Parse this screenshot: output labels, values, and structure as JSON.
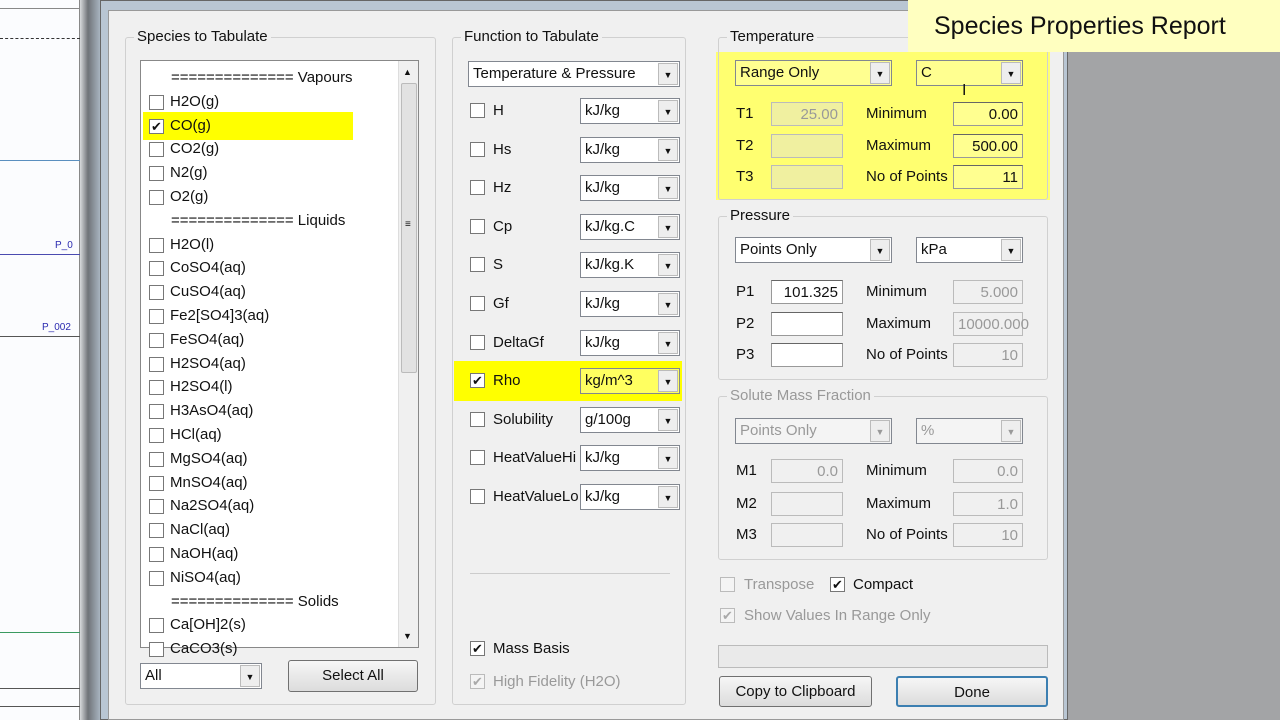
{
  "overlay_title": "Species Properties Report",
  "background": {
    "labels": [
      "P_0",
      "P_002"
    ]
  },
  "species": {
    "title": "Species to Tabulate",
    "items": [
      {
        "type": "header",
        "label": "============== Vapours"
      },
      {
        "label": "H2O(g)",
        "checked": false
      },
      {
        "label": "CO(g)",
        "checked": true,
        "highlight": true
      },
      {
        "label": "CO2(g)",
        "checked": false
      },
      {
        "label": "N2(g)",
        "checked": false
      },
      {
        "label": "O2(g)",
        "checked": false
      },
      {
        "type": "header",
        "label": "============== Liquids"
      },
      {
        "label": "H2O(l)",
        "checked": false
      },
      {
        "label": "CoSO4(aq)",
        "checked": false
      },
      {
        "label": "CuSO4(aq)",
        "checked": false
      },
      {
        "label": "Fe2[SO4]3(aq)",
        "checked": false
      },
      {
        "label": "FeSO4(aq)",
        "checked": false
      },
      {
        "label": "H2SO4(aq)",
        "checked": false
      },
      {
        "label": "H2SO4(l)",
        "checked": false
      },
      {
        "label": "H3AsO4(aq)",
        "checked": false
      },
      {
        "label": "HCl(aq)",
        "checked": false
      },
      {
        "label": "MgSO4(aq)",
        "checked": false
      },
      {
        "label": "MnSO4(aq)",
        "checked": false
      },
      {
        "label": "Na2SO4(aq)",
        "checked": false
      },
      {
        "label": "NaCl(aq)",
        "checked": false
      },
      {
        "label": "NaOH(aq)",
        "checked": false
      },
      {
        "label": "NiSO4(aq)",
        "checked": false
      },
      {
        "type": "header",
        "label": "============== Solids"
      },
      {
        "label": "Ca[OH]2(s)",
        "checked": false
      },
      {
        "label": "CaCO3(s)",
        "checked": false
      }
    ],
    "filter": "All",
    "select_all": "Select All"
  },
  "function": {
    "title": "Function to Tabulate",
    "mode": "Temperature & Pressure",
    "rows": [
      {
        "label": "H",
        "unit": "kJ/kg",
        "checked": false
      },
      {
        "label": "Hs",
        "unit": "kJ/kg",
        "checked": false
      },
      {
        "label": "Hz",
        "unit": "kJ/kg",
        "checked": false
      },
      {
        "label": "Cp",
        "unit": "kJ/kg.C",
        "checked": false
      },
      {
        "label": "S",
        "unit": "kJ/kg.K",
        "checked": false
      },
      {
        "label": "Gf",
        "unit": "kJ/kg",
        "checked": false
      },
      {
        "label": "DeltaGf",
        "unit": "kJ/kg",
        "checked": false
      },
      {
        "label": "Rho",
        "unit": "kg/m^3",
        "checked": true,
        "highlight": true
      },
      {
        "label": "Solubility",
        "unit": "g/100g",
        "checked": false
      },
      {
        "label": "HeatValueHi",
        "unit": "kJ/kg",
        "checked": false
      },
      {
        "label": "HeatValueLo",
        "unit": "kJ/kg",
        "checked": false
      }
    ],
    "mass_basis": {
      "label": "Mass Basis",
      "checked": true
    },
    "high_fidelity": {
      "label": "High Fidelity (H2O)",
      "checked": true,
      "disabled": true
    }
  },
  "temperature": {
    "title": "Temperature",
    "mode": "Range Only",
    "unit": "C",
    "t_labels": [
      "T1",
      "T2",
      "T3"
    ],
    "t_values": [
      "25.00",
      "",
      ""
    ],
    "range_labels": [
      "Minimum",
      "Maximum",
      "No of Points"
    ],
    "range_values": [
      "0.00",
      "500.00",
      "11"
    ]
  },
  "pressure": {
    "title": "Pressure",
    "mode": "Points Only",
    "unit": "kPa",
    "p_labels": [
      "P1",
      "P2",
      "P3"
    ],
    "p_values": [
      "101.325",
      "",
      ""
    ],
    "range_labels": [
      "Minimum",
      "Maximum",
      "No of Points"
    ],
    "range_values": [
      "5.000",
      "10000.000",
      "10"
    ]
  },
  "solute": {
    "title": "Solute Mass Fraction",
    "mode": "Points Only",
    "unit": "%",
    "m_labels": [
      "M1",
      "M2",
      "M3"
    ],
    "m_values": [
      "0.0",
      "",
      ""
    ],
    "range_labels": [
      "Minimum",
      "Maximum",
      "No of Points"
    ],
    "range_values": [
      "0.0",
      "1.0",
      "10"
    ]
  },
  "options": {
    "transpose": {
      "label": "Transpose",
      "checked": false
    },
    "compact": {
      "label": "Compact",
      "checked": true
    },
    "show_in_range": {
      "label": "Show Values In Range Only",
      "checked": true
    }
  },
  "buttons": {
    "copy": "Copy to Clipboard",
    "done": "Done"
  },
  "colors": {
    "highlight": "#ffff00",
    "overlay": "#ffffc0"
  }
}
